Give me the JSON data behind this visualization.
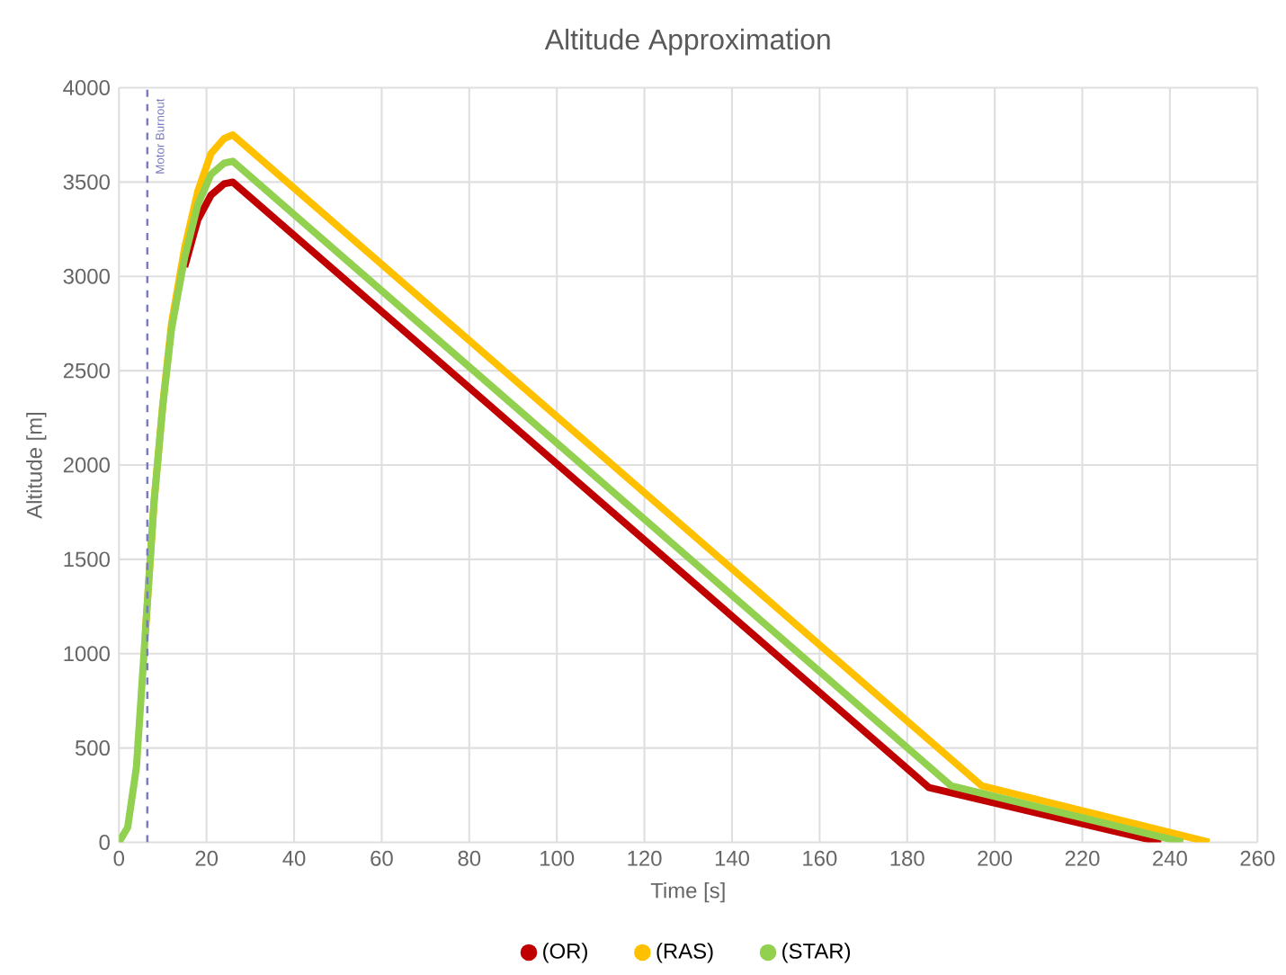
{
  "chart_data": {
    "type": "line",
    "title": "Altitude Approximation",
    "xlabel": "Time [s]",
    "ylabel": "Altitude [m]",
    "xlim": [
      0,
      260
    ],
    "ylim": [
      0,
      4000
    ],
    "xticks": [
      0,
      20,
      40,
      60,
      80,
      100,
      120,
      140,
      160,
      180,
      200,
      220,
      240,
      260
    ],
    "yticks": [
      0,
      500,
      1000,
      1500,
      2000,
      2500,
      3000,
      3500,
      4000
    ],
    "grid": true,
    "legend": "bottom",
    "line_style": "solid",
    "ref_lines": [
      {
        "axis": "x",
        "value": 6.5,
        "label": "Motor Burnout",
        "color": "#7b7bc0",
        "line_style": "dashed"
      }
    ],
    "series": [
      {
        "name": "(OR)",
        "color": "#c00000",
        "x": [
          15,
          18,
          21,
          24,
          26,
          185,
          238
        ],
        "values": [
          3050,
          3300,
          3430,
          3490,
          3500,
          290,
          0
        ]
      },
      {
        "name": "(RAS)",
        "color": "#ffc000",
        "x": [
          6,
          8,
          10,
          12,
          15,
          18,
          21,
          24,
          26,
          197,
          249
        ],
        "values": [
          1100,
          1800,
          2320,
          2750,
          3150,
          3450,
          3650,
          3730,
          3750,
          300,
          0
        ]
      },
      {
        "name": "(STAR)",
        "color": "#92d050",
        "x": [
          0,
          2,
          4,
          6,
          8,
          10,
          12,
          15,
          18,
          21,
          24,
          26,
          190,
          243
        ],
        "values": [
          0,
          80,
          400,
          1100,
          1800,
          2310,
          2720,
          3100,
          3380,
          3540,
          3600,
          3610,
          300,
          0
        ]
      }
    ]
  }
}
